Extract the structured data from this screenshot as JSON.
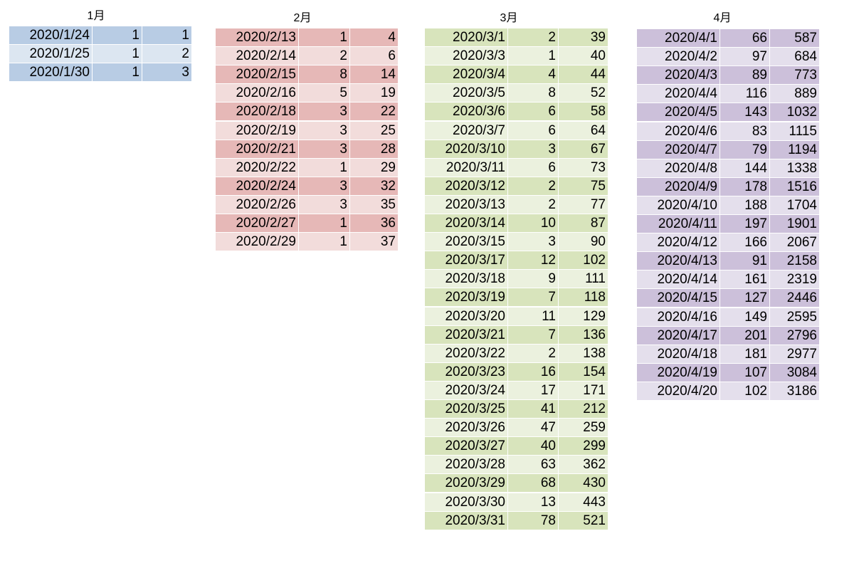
{
  "tables": [
    {
      "title": "1月",
      "rows": [
        [
          "2020/1/24",
          1,
          1
        ],
        [
          "2020/1/25",
          1,
          2
        ],
        [
          "2020/1/30",
          1,
          3
        ]
      ]
    },
    {
      "title": "2月",
      "rows": [
        [
          "2020/2/13",
          1,
          4
        ],
        [
          "2020/2/14",
          2,
          6
        ],
        [
          "2020/2/15",
          8,
          14
        ],
        [
          "2020/2/16",
          5,
          19
        ],
        [
          "2020/2/18",
          3,
          22
        ],
        [
          "2020/2/19",
          3,
          25
        ],
        [
          "2020/2/21",
          3,
          28
        ],
        [
          "2020/2/22",
          1,
          29
        ],
        [
          "2020/2/24",
          3,
          32
        ],
        [
          "2020/2/26",
          3,
          35
        ],
        [
          "2020/2/27",
          1,
          36
        ],
        [
          "2020/2/29",
          1,
          37
        ]
      ]
    },
    {
      "title": "3月",
      "rows": [
        [
          "2020/3/1",
          2,
          39
        ],
        [
          "2020/3/3",
          1,
          40
        ],
        [
          "2020/3/4",
          4,
          44
        ],
        [
          "2020/3/5",
          8,
          52
        ],
        [
          "2020/3/6",
          6,
          58
        ],
        [
          "2020/3/7",
          6,
          64
        ],
        [
          "2020/3/10",
          3,
          67
        ],
        [
          "2020/3/11",
          6,
          73
        ],
        [
          "2020/3/12",
          2,
          75
        ],
        [
          "2020/3/13",
          2,
          77
        ],
        [
          "2020/3/14",
          10,
          87
        ],
        [
          "2020/3/15",
          3,
          90
        ],
        [
          "2020/3/17",
          12,
          102
        ],
        [
          "2020/3/18",
          9,
          111
        ],
        [
          "2020/3/19",
          7,
          118
        ],
        [
          "2020/3/20",
          11,
          129
        ],
        [
          "2020/3/21",
          7,
          136
        ],
        [
          "2020/3/22",
          2,
          138
        ],
        [
          "2020/3/23",
          16,
          154
        ],
        [
          "2020/3/24",
          17,
          171
        ],
        [
          "2020/3/25",
          41,
          212
        ],
        [
          "2020/3/26",
          47,
          259
        ],
        [
          "2020/3/27",
          40,
          299
        ],
        [
          "2020/3/28",
          63,
          362
        ],
        [
          "2020/3/29",
          68,
          430
        ],
        [
          "2020/3/30",
          13,
          443
        ],
        [
          "2020/3/31",
          78,
          521
        ]
      ]
    },
    {
      "title": "4月",
      "rows": [
        [
          "2020/4/1",
          66,
          587
        ],
        [
          "2020/4/2",
          97,
          684
        ],
        [
          "2020/4/3",
          89,
          773
        ],
        [
          "2020/4/4",
          116,
          889
        ],
        [
          "2020/4/5",
          143,
          1032
        ],
        [
          "2020/4/6",
          83,
          1115
        ],
        [
          "2020/4/7",
          79,
          1194
        ],
        [
          "2020/4/8",
          144,
          1338
        ],
        [
          "2020/4/9",
          178,
          1516
        ],
        [
          "2020/4/10",
          188,
          1704
        ],
        [
          "2020/4/11",
          197,
          1901
        ],
        [
          "2020/4/12",
          166,
          2067
        ],
        [
          "2020/4/13",
          91,
          2158
        ],
        [
          "2020/4/14",
          161,
          2319
        ],
        [
          "2020/4/15",
          127,
          2446
        ],
        [
          "2020/4/16",
          149,
          2595
        ],
        [
          "2020/4/17",
          201,
          2796
        ],
        [
          "2020/4/18",
          181,
          2977
        ],
        [
          "2020/4/19",
          107,
          3084
        ],
        [
          "2020/4/20",
          102,
          3186
        ]
      ]
    }
  ]
}
